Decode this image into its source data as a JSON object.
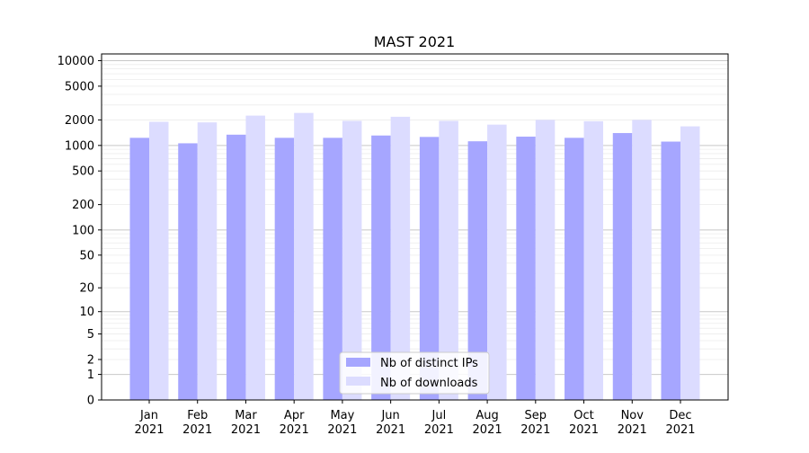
{
  "chart_data": {
    "type": "bar",
    "title": "MAST 2021",
    "xlabel": "",
    "ylabel": "",
    "yscale": "symlog",
    "ylim": [
      0,
      12000
    ],
    "yticks": [
      0,
      1,
      2,
      5,
      10,
      20,
      50,
      100,
      200,
      500,
      1000,
      2000,
      5000,
      10000
    ],
    "categories": [
      [
        "Jan",
        "2021"
      ],
      [
        "Feb",
        "2021"
      ],
      [
        "Mar",
        "2021"
      ],
      [
        "Apr",
        "2021"
      ],
      [
        "May",
        "2021"
      ],
      [
        "Jun",
        "2021"
      ],
      [
        "Jul",
        "2021"
      ],
      [
        "Aug",
        "2021"
      ],
      [
        "Sep",
        "2021"
      ],
      [
        "Oct",
        "2021"
      ],
      [
        "Nov",
        "2021"
      ],
      [
        "Dec",
        "2021"
      ]
    ],
    "series": [
      {
        "name": "Nb of distinct IPs",
        "color": "#a6a6ff",
        "values": [
          1230,
          1060,
          1340,
          1230,
          1230,
          1310,
          1260,
          1120,
          1270,
          1230,
          1400,
          1110
        ]
      },
      {
        "name": "Nb of downloads",
        "color": "#dcdcff",
        "values": [
          1900,
          1870,
          2250,
          2420,
          1950,
          2180,
          1950,
          1760,
          2000,
          1930,
          2000,
          1680
        ]
      }
    ],
    "grid": true,
    "legend": "bottom-center"
  }
}
